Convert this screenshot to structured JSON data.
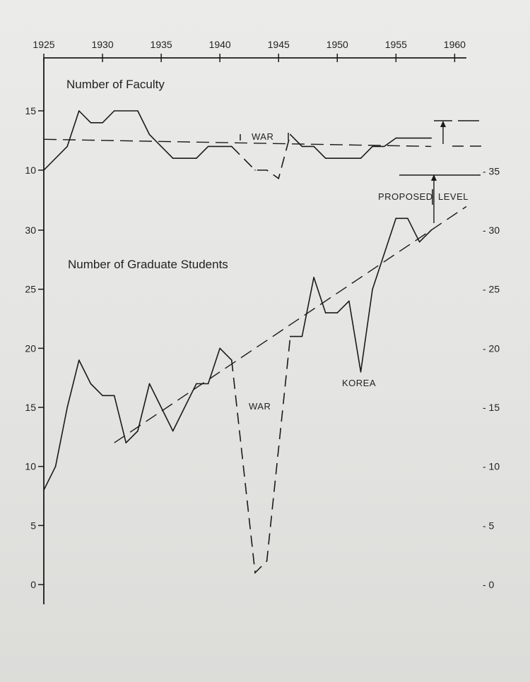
{
  "chart_data": {
    "type": "line",
    "x_range": [
      1925,
      1961
    ],
    "x_ticks": [
      "1925",
      "1930",
      "1935",
      "1940",
      "1945",
      "1950",
      "1955",
      "1960"
    ],
    "faculty": {
      "title": "Number of Faculty",
      "y_ticks": [
        "15",
        "10"
      ],
      "y_range": [
        7.5,
        18
      ],
      "values": [
        {
          "x": 1925,
          "y": 10
        },
        {
          "x": 1927,
          "y": 12
        },
        {
          "x": 1928,
          "y": 15
        },
        {
          "x": 1929,
          "y": 14
        },
        {
          "x": 1930,
          "y": 14
        },
        {
          "x": 1931,
          "y": 15
        },
        {
          "x": 1933,
          "y": 15
        },
        {
          "x": 1934,
          "y": 13
        },
        {
          "x": 1936,
          "y": 11
        },
        {
          "x": 1938,
          "y": 11
        },
        {
          "x": 1939,
          "y": 12
        },
        {
          "x": 1941,
          "y": 12
        }
      ],
      "war_values": [
        {
          "x": 1941,
          "y": 12
        },
        {
          "x": 1943,
          "y": 10
        },
        {
          "x": 1944,
          "y": 10
        },
        {
          "x": 1945,
          "y": 9.3
        },
        {
          "x": 1946,
          "y": 13
        }
      ],
      "postwar_values": [
        {
          "x": 1946,
          "y": 13
        },
        {
          "x": 1947,
          "y": 12
        },
        {
          "x": 1948,
          "y": 12
        },
        {
          "x": 1949,
          "y": 11
        },
        {
          "x": 1952,
          "y": 11
        },
        {
          "x": 1953,
          "y": 12
        },
        {
          "x": 1954,
          "y": 12
        },
        {
          "x": 1955,
          "y": 12.7
        },
        {
          "x": 1958,
          "y": 12.7
        }
      ],
      "trend": [
        {
          "x": 1925,
          "y": 12.6
        },
        {
          "x": 1958,
          "y": 12
        }
      ],
      "war_label": "WAR"
    },
    "students": {
      "title": "Number of Graduate Students",
      "y_ticks_left": [
        "30",
        "25",
        "20",
        "15",
        "10",
        "5",
        "0"
      ],
      "y_ticks_right": [
        "35",
        "30",
        "25",
        "20",
        "15",
        "10",
        "5",
        "0"
      ],
      "y_range": [
        0,
        40
      ],
      "values": [
        {
          "x": 1925,
          "y": 8
        },
        {
          "x": 1926,
          "y": 10
        },
        {
          "x": 1927,
          "y": 15
        },
        {
          "x": 1928,
          "y": 19
        },
        {
          "x": 1929,
          "y": 17
        },
        {
          "x": 1930,
          "y": 16
        },
        {
          "x": 1931,
          "y": 16
        },
        {
          "x": 1932,
          "y": 12
        },
        {
          "x": 1933,
          "y": 13
        },
        {
          "x": 1934,
          "y": 17
        },
        {
          "x": 1936,
          "y": 13
        },
        {
          "x": 1938,
          "y": 17
        },
        {
          "x": 1939,
          "y": 17
        },
        {
          "x": 1940,
          "y": 20
        },
        {
          "x": 1941,
          "y": 19
        }
      ],
      "war_values": [
        {
          "x": 1941,
          "y": 19
        },
        {
          "x": 1943,
          "y": 1
        },
        {
          "x": 1944,
          "y": 2
        },
        {
          "x": 1946,
          "y": 21
        }
      ],
      "postwar_values": [
        {
          "x": 1946,
          "y": 21
        },
        {
          "x": 1947,
          "y": 21
        },
        {
          "x": 1948,
          "y": 26
        },
        {
          "x": 1949,
          "y": 23
        },
        {
          "x": 1950,
          "y": 23
        },
        {
          "x": 1951,
          "y": 24
        },
        {
          "x": 1952,
          "y": 18
        },
        {
          "x": 1953,
          "y": 25
        },
        {
          "x": 1955,
          "y": 31
        },
        {
          "x": 1956,
          "y": 31
        },
        {
          "x": 1957,
          "y": 29
        },
        {
          "x": 1958,
          "y": 30
        }
      ],
      "trend": [
        {
          "x": 1931,
          "y": 12
        },
        {
          "x": 1961,
          "y": 32
        }
      ],
      "war_label": "WAR",
      "korea_label": "KOREA"
    },
    "proposed_label_left": "PROPOSED",
    "proposed_label_right": "LEVEL"
  }
}
